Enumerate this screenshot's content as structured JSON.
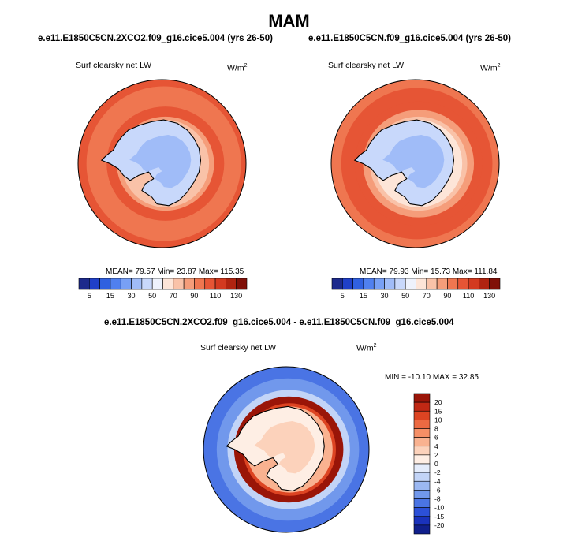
{
  "page": {
    "title": "MAM",
    "panels": [
      {
        "case": "e.e11.E1850C5CN.2XCO2.f09_g16.cice5.004 (yrs 26-50)",
        "variable": "Surf clearsky net LW",
        "units": "W/m",
        "units_exp": "2",
        "stats_text": "MEAN= 79.57  Min= 23.87  Max= 115.35"
      },
      {
        "case": "e.e11.E1850C5CN.f09_g16.cice5.004 (yrs 26-50)",
        "variable": "Surf clearsky net LW",
        "units": "W/m",
        "units_exp": "2",
        "stats_text": "MEAN= 79.93  Min= 15.73  Max= 111.84"
      }
    ],
    "diff": {
      "case": "e.e11.E1850C5CN.2XCO2.f09_g16.cice5.004 - e.e11.E1850C5CN.f09_g16.cice5.004",
      "variable": "Surf clearsky net LW",
      "units": "W/m",
      "units_exp": "2",
      "stats_text": "MIN = -10.10 MAX =  32.85"
    }
  },
  "chart_data": [
    {
      "type": "heatmap",
      "projection": "south-polar-stereographic",
      "title": "e.e11.E1850C5CN.2XCO2.f09_g16.cice5.004 (yrs 26-50)",
      "variable": "Surf clearsky net LW",
      "units": "W/m2",
      "mean": 79.57,
      "min": 23.87,
      "max": 115.35,
      "colorbar_levels": [
        5,
        10,
        15,
        20,
        30,
        40,
        50,
        60,
        70,
        80,
        90,
        100,
        110,
        120,
        130
      ],
      "colorbar_tick_labels": [
        "5",
        "15",
        "30",
        "50",
        "70",
        "90",
        "110",
        "130"
      ],
      "colorbar_colors": [
        "#1d2a8c",
        "#2040c8",
        "#3060e0",
        "#5080ef",
        "#78a0f5",
        "#a0bcf8",
        "#c8d8fb",
        "#eef2fc",
        "#fde5d8",
        "#f9c2a8",
        "#f59d7a",
        "#ef7650",
        "#e65535",
        "#d33a20",
        "#b02410",
        "#801008"
      ],
      "colorbar_position": "bottom"
    },
    {
      "type": "heatmap",
      "projection": "south-polar-stereographic",
      "title": "e.e11.E1850C5CN.f09_g16.cice5.004 (yrs 26-50)",
      "variable": "Surf clearsky net LW",
      "units": "W/m2",
      "mean": 79.93,
      "min": 15.73,
      "max": 111.84,
      "colorbar_levels": [
        5,
        10,
        15,
        20,
        30,
        40,
        50,
        60,
        70,
        80,
        90,
        100,
        110,
        120,
        130
      ],
      "colorbar_tick_labels": [
        "5",
        "15",
        "30",
        "50",
        "70",
        "90",
        "110",
        "130"
      ],
      "colorbar_colors": [
        "#1d2a8c",
        "#2040c8",
        "#3060e0",
        "#5080ef",
        "#78a0f5",
        "#a0bcf8",
        "#c8d8fb",
        "#eef2fc",
        "#fde5d8",
        "#f9c2a8",
        "#f59d7a",
        "#ef7650",
        "#e65535",
        "#d33a20",
        "#b02410",
        "#801008"
      ],
      "colorbar_position": "bottom"
    },
    {
      "type": "heatmap",
      "projection": "south-polar-stereographic",
      "title": "e.e11.E1850C5CN.2XCO2.f09_g16.cice5.004 - e.e11.E1850C5CN.f09_g16.cice5.004",
      "variable": "Surf clearsky net LW",
      "units": "W/m2",
      "min": -10.1,
      "max": 32.85,
      "colorbar_tick_labels": [
        "20",
        "15",
        "10",
        "8",
        "6",
        "4",
        "2",
        "0",
        "-2",
        "-4",
        "-6",
        "-8",
        "-10",
        "-15",
        "-20"
      ],
      "colorbar_colors": [
        "#9a1508",
        "#c02814",
        "#dd4422",
        "#ec6a42",
        "#f58f66",
        "#f9b290",
        "#fcd2bb",
        "#feeee4",
        "#e4ecfb",
        "#c2d4f7",
        "#9bb8f2",
        "#7198ec",
        "#4a74e4",
        "#2c50d8",
        "#1a32bc",
        "#101f8c"
      ],
      "colorbar_position": "right"
    }
  ]
}
